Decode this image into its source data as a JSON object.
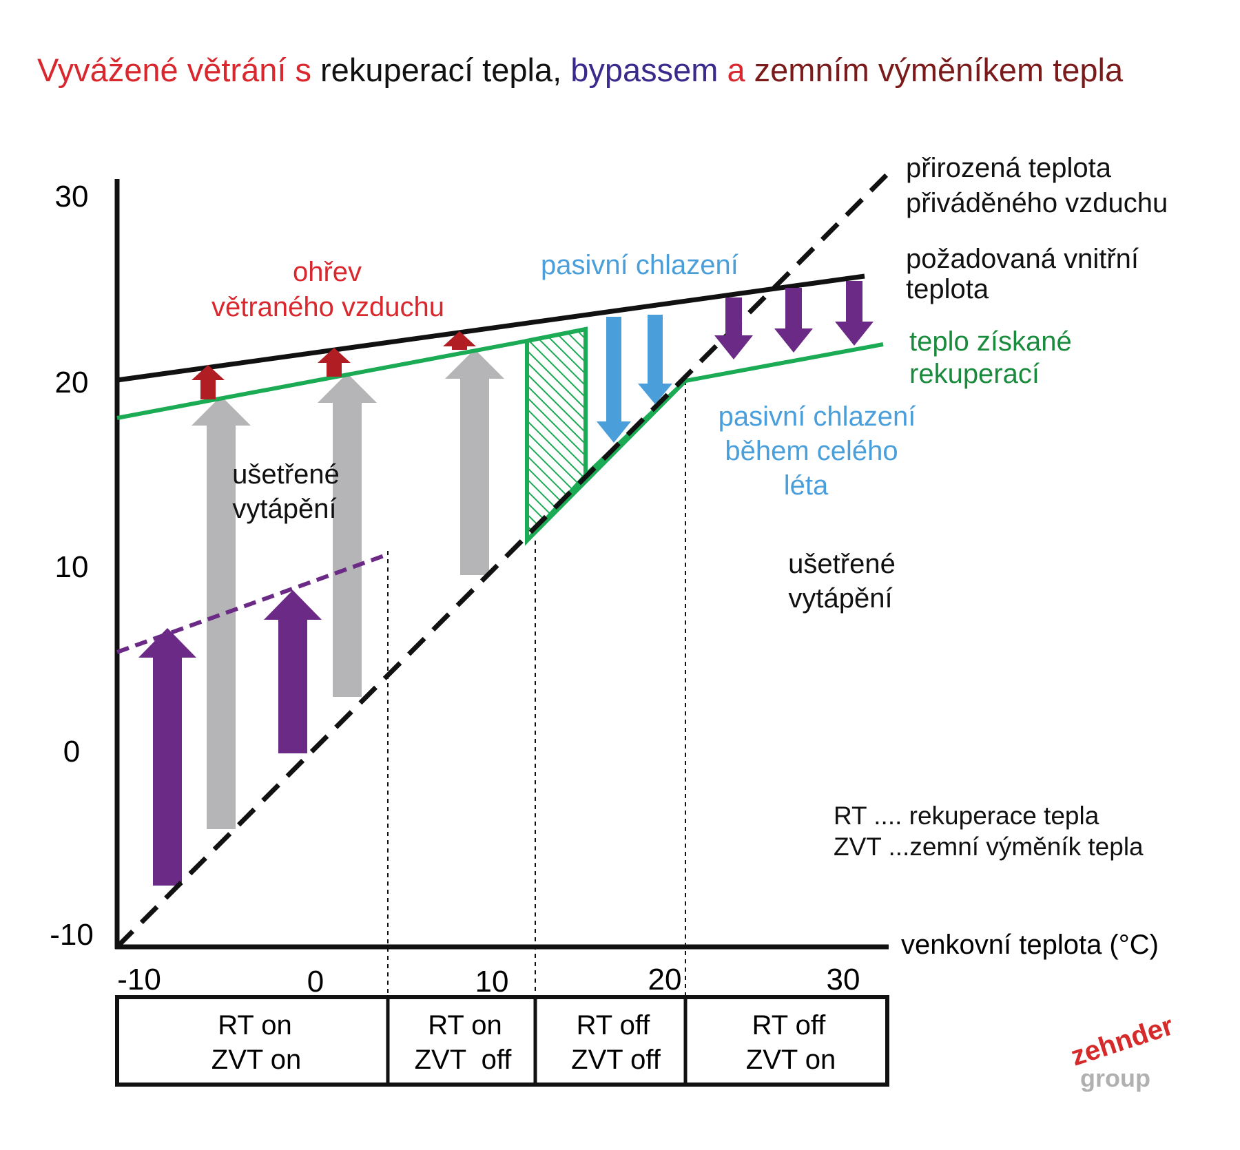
{
  "title": {
    "part1": "Vyvážené větrání s ",
    "part2": "rekuperací tepla, ",
    "part3": "bypassem ",
    "part4": "a ",
    "part5": "zemním výměníkem tepla"
  },
  "colors": {
    "red": "#d9272e",
    "black": "#111111",
    "indigo": "#3b2a8c",
    "darkred": "#7a1a1a",
    "green": "#1aab54",
    "blue": "#4a9fda",
    "purple": "#6b2a85",
    "gray": "#b5b5b8",
    "arrow_red": "#b01e23"
  },
  "y_axis": {
    "ticks": [
      "30",
      "20",
      "10",
      "0",
      "-10"
    ]
  },
  "x_axis": {
    "ticks": [
      "-10",
      "0",
      "10",
      "20",
      "30"
    ],
    "label": "venkovní teplota (°C)"
  },
  "labels": {
    "natural_temp": [
      "přirozená teplota",
      "přiváděného vzduchu"
    ],
    "required_temp": [
      "požadovaná vnitřní",
      "teplota"
    ],
    "heat_recovered": [
      "teplo získané",
      "rekuperací"
    ],
    "passive_cooling": "pasivní chlazení",
    "passive_cooling_summer": [
      "pasivní chlazení",
      "během celého",
      "léta"
    ],
    "heating_air": [
      "ohřev",
      "větraného vzduchu"
    ],
    "saved_heating_left": [
      "ušetřené",
      "vytápění"
    ],
    "saved_heating_right": [
      "ušetřené",
      "vytápění"
    ]
  },
  "legend": {
    "rt": "RT .... rekuperace tepla",
    "zvt": "ZVT ...zemní výměník tepla"
  },
  "modes": [
    {
      "line1": "RT on",
      "line2": "ZVT on"
    },
    {
      "line1": "RT on",
      "line2": "ZVT  off"
    },
    {
      "line1": "RT off",
      "line2": "ZVT off"
    },
    {
      "line1": "RT off",
      "line2": "ZVT on"
    }
  ],
  "logo": {
    "line1": "zehnder",
    "line2": "group"
  }
}
